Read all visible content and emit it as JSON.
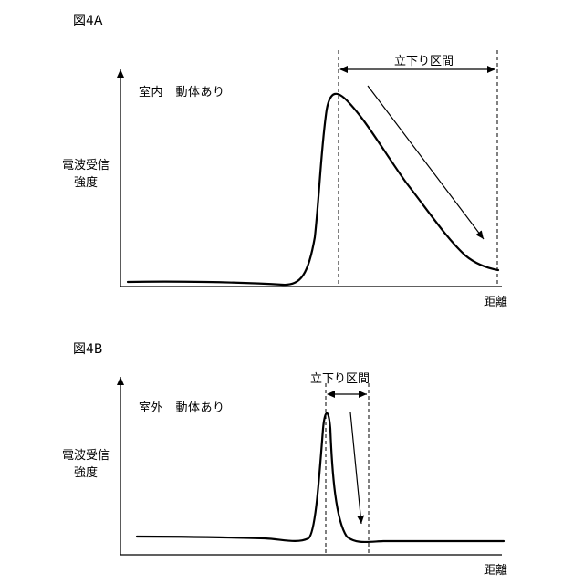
{
  "figures": [
    {
      "id": "4A",
      "label": "図4A",
      "title": "室内　動体あり",
      "ylabel": "電波受信\n強度",
      "xlabel": "距離",
      "interval_label": "立下り区間"
    },
    {
      "id": "4B",
      "label": "図4B",
      "title": "室外　動体あり",
      "ylabel": "電波受信\n強度",
      "xlabel": "距離",
      "interval_label": "立下り区間"
    }
  ]
}
